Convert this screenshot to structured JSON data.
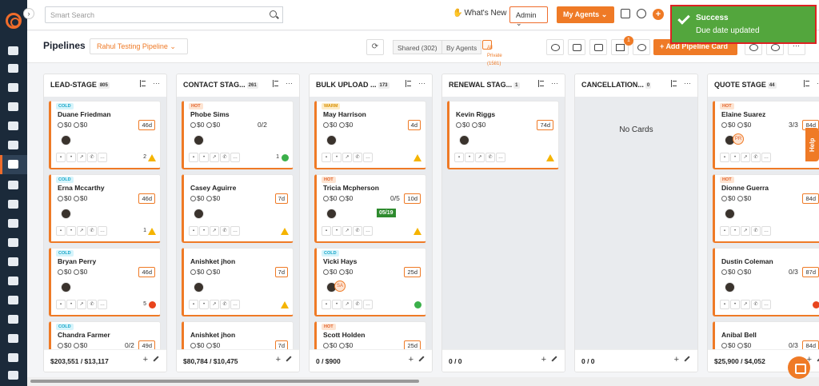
{
  "topbar": {
    "search_placeholder": "Smart Search",
    "whats_new": "What's New",
    "admin": "Admin",
    "my_agents": "My Agents"
  },
  "toast": {
    "title": "Success",
    "message": "Due date updated"
  },
  "subbar": {
    "title": "Pipelines",
    "pipeline": "Rahul Testing Pipeline",
    "shared": "Shared (302)",
    "by_agents": "By Agents",
    "all_private": "All Private (1581)",
    "filter_count": "1",
    "add_card": "Add Pipeline Card"
  },
  "help": "Help",
  "columns": [
    {
      "title": "LEAD-STAGE",
      "count": "805",
      "footer": "$203,551 / $13,117",
      "cards": [
        {
          "tag": "COLD",
          "name": "Duane Friedman",
          "amt1": "$0",
          "amt2": "$0",
          "ratio": "",
          "days": "46d",
          "note": "2",
          "end": "warn"
        },
        {
          "tag": "COLD",
          "name": "Erna Mccarthy",
          "amt1": "$0",
          "amt2": "$0",
          "ratio": "",
          "days": "46d",
          "note": "1",
          "end": "warn"
        },
        {
          "tag": "COLD",
          "name": "Bryan Perry",
          "amt1": "$0",
          "amt2": "$0",
          "ratio": "",
          "days": "46d",
          "note": "5",
          "end": "red"
        },
        {
          "tag": "COLD",
          "name": "Chandra Farmer",
          "amt1": "$0",
          "amt2": "$0",
          "ratio": "0/2",
          "days": "49d",
          "note": "",
          "end": ""
        }
      ]
    },
    {
      "title": "CONTACT STAG...",
      "count": "261",
      "footer": "$80,784 / $10,475",
      "cards": [
        {
          "tag": "HOT",
          "name": "Phobe Sims",
          "amt1": "$0",
          "amt2": "$0",
          "ratio": "0/2",
          "days": "",
          "note": "1",
          "end": "green"
        },
        {
          "tag": "",
          "name": "Casey Aguirre",
          "amt1": "$0",
          "amt2": "$0",
          "ratio": "",
          "days": "7d",
          "note": "",
          "end": "warn"
        },
        {
          "tag": "",
          "name": "Anishket jhon",
          "amt1": "$0",
          "amt2": "$0",
          "ratio": "",
          "days": "7d",
          "note": "",
          "end": "warn"
        },
        {
          "tag": "",
          "name": "Anishket jhon",
          "amt1": "$0",
          "amt2": "$0",
          "ratio": "",
          "days": "7d",
          "note": "",
          "end": ""
        }
      ]
    },
    {
      "title": "BULK UPLOAD ...",
      "count": "173",
      "footer": "0 / $900",
      "cards": [
        {
          "tag": "WARM",
          "name": "May Harrison",
          "amt1": "$0",
          "amt2": "$0",
          "ratio": "",
          "days": "4d",
          "note": "",
          "end": "warn"
        },
        {
          "tag": "HOT",
          "name": "Tricia Mcpherson",
          "amt1": "$0",
          "amt2": "$0",
          "ratio": "0/5",
          "days": "10d",
          "note": "",
          "end": "warn",
          "date": "05/19"
        },
        {
          "tag": "COLD",
          "name": "Vicki Hays",
          "amt1": "$0",
          "amt2": "$0",
          "ratio": "",
          "days": "25d",
          "note": "",
          "end": "green",
          "av2": "SA"
        },
        {
          "tag": "HOT",
          "name": "Scott Holden",
          "amt1": "$0",
          "amt2": "$0",
          "ratio": "",
          "days": "25d",
          "note": "",
          "end": ""
        }
      ]
    },
    {
      "title": "RENEWAL STAG...",
      "count": "1",
      "footer": "0 / 0",
      "cards": [
        {
          "tag": "",
          "name": "Kevin Riggs",
          "amt1": "$0",
          "amt2": "$0",
          "ratio": "",
          "days": "74d",
          "note": "",
          "end": "warn"
        }
      ]
    },
    {
      "title": "CANCELLATION...",
      "count": "0",
      "footer": "0 / 0",
      "empty": "No Cards",
      "cards": []
    },
    {
      "title": "QUOTE STAGE",
      "count": "44",
      "footer": "$25,900 / $4,052",
      "cards": [
        {
          "tag": "HOT",
          "name": "Elaine Suarez",
          "amt1": "$0",
          "amt2": "$0",
          "ratio": "3/3",
          "days": "84d",
          "note": "",
          "end": "",
          "av2": "PR"
        },
        {
          "tag": "HOT",
          "name": "Dionne Guerra",
          "amt1": "$0",
          "amt2": "$0",
          "ratio": "",
          "days": "84d",
          "note": "",
          "end": ""
        },
        {
          "tag": "",
          "name": "Dustin Coleman",
          "amt1": "$0",
          "amt2": "$0",
          "ratio": "0/3",
          "days": "87d",
          "note": "",
          "end": "red"
        },
        {
          "tag": "",
          "name": "Anibal Bell",
          "amt1": "$0",
          "amt2": "$0",
          "ratio": "0/3",
          "days": "84d",
          "note": "",
          "end": ""
        }
      ]
    }
  ]
}
